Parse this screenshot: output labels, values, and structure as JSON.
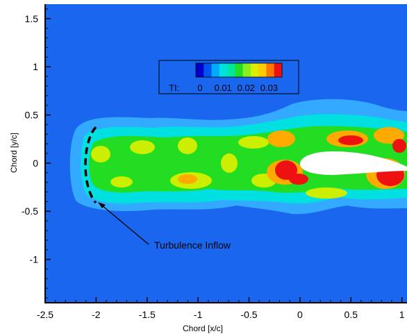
{
  "chart_data": {
    "type": "heatmap",
    "title": "",
    "xlabel": "Chord [x/c]",
    "ylabel": "Chord [y/c]",
    "xlim": [
      -2.5,
      1.05
    ],
    "ylim": [
      -1.45,
      1.65
    ],
    "x_ticks": [
      "-2.5",
      "-2",
      "-1.5",
      "-1",
      "-0.5",
      "0",
      "0.5",
      "1"
    ],
    "y_ticks": [
      "1.5",
      "1",
      "0.5",
      "0",
      "-0.5",
      "-1"
    ],
    "colorbar": {
      "variable": "TI:",
      "tick_labels": [
        "0",
        "0.01",
        "0.02",
        "0.03"
      ],
      "range": [
        0,
        0.035
      ],
      "colors": [
        "#0000cc",
        "#0055ee",
        "#00aaff",
        "#00e0e0",
        "#00e6a0",
        "#22dd22",
        "#88ee22",
        "#ddee00",
        "#ffcc00",
        "#ff7700",
        "#ee1111"
      ]
    },
    "background_color": "#1a66ee",
    "annotation": {
      "text": "Turbulence Inflow",
      "arrow_tip": [
        -2.02,
        -0.4
      ],
      "arc_center_x": -2.08,
      "arc_y_range": [
        -0.4,
        0.4
      ]
    },
    "airfoil": {
      "leading_edge_x": 0.0,
      "trailing_edge_x": 1.0,
      "y": 0.0
    }
  }
}
